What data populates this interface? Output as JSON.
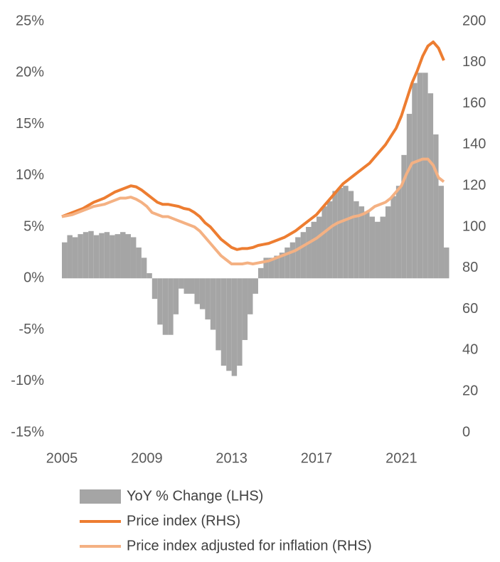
{
  "chart_data": {
    "type": "bar-line",
    "x": [
      2005,
      2005.25,
      2005.5,
      2005.75,
      2006,
      2006.25,
      2006.5,
      2006.75,
      2007,
      2007.25,
      2007.5,
      2007.75,
      2008,
      2008.25,
      2008.5,
      2008.75,
      2009,
      2009.25,
      2009.5,
      2009.75,
      2010,
      2010.25,
      2010.5,
      2010.75,
      2011,
      2011.25,
      2011.5,
      2011.75,
      2012,
      2012.25,
      2012.5,
      2012.75,
      2013,
      2013.25,
      2013.5,
      2013.75,
      2014,
      2014.25,
      2014.5,
      2014.75,
      2015,
      2015.25,
      2015.5,
      2015.75,
      2016,
      2016.25,
      2016.5,
      2016.75,
      2017,
      2017.25,
      2017.5,
      2017.75,
      2018,
      2018.25,
      2018.5,
      2018.75,
      2019,
      2019.25,
      2019.5,
      2019.75,
      2020,
      2020.25,
      2020.5,
      2020.75,
      2021,
      2021.25,
      2021.5,
      2021.75,
      2022,
      2022.25,
      2022.5,
      2022.75,
      2023
    ],
    "xlim": [
      2005,
      2023.1
    ],
    "xticks": [
      2005,
      2009,
      2013,
      2017,
      2021
    ],
    "ylim": [
      -15,
      25
    ],
    "yticks": [
      {
        "value": -15,
        "label": "-15%"
      },
      {
        "value": -10,
        "label": "-10%"
      },
      {
        "value": -5,
        "label": "-5%"
      },
      {
        "value": 0,
        "label": "0%"
      },
      {
        "value": 5,
        "label": "5%"
      },
      {
        "value": 10,
        "label": "10%"
      },
      {
        "value": 15,
        "label": "15%"
      },
      {
        "value": 20,
        "label": "20%"
      },
      {
        "value": 25,
        "label": "25%"
      }
    ],
    "y2lim": [
      0,
      200
    ],
    "y2ticks": [
      0,
      20,
      40,
      60,
      80,
      100,
      120,
      140,
      160,
      180,
      200
    ],
    "series": [
      {
        "name": "YoY % Change (LHS)",
        "kind": "bar",
        "color": "#a5a5a5",
        "values": [
          3.5,
          4.2,
          4.0,
          4.3,
          4.5,
          4.6,
          4.2,
          4.4,
          4.5,
          4.2,
          4.3,
          4.5,
          4.3,
          4.0,
          3.0,
          2.0,
          0.5,
          -2.0,
          -4.5,
          -5.5,
          -5.5,
          -3.5,
          -1.0,
          -1.5,
          -1.5,
          -2.5,
          -3.0,
          -4.0,
          -5.0,
          -7.0,
          -8.5,
          -9.0,
          -9.5,
          -8.5,
          -6.0,
          -3.5,
          -1.5,
          1.0,
          2.0,
          2.0,
          2.2,
          2.5,
          3.0,
          3.5,
          4.0,
          4.5,
          5.0,
          5.5,
          6.0,
          7.0,
          7.5,
          8.5,
          8.8,
          9.0,
          8.5,
          7.5,
          7.0,
          6.5,
          6.0,
          5.5,
          6.0,
          7.0,
          8.0,
          9.0,
          12.0,
          16.0,
          19.0,
          20.0,
          20.0,
          18.0,
          14.0,
          9.0,
          3.0
        ]
      },
      {
        "name": "Price index (RHS)",
        "kind": "line",
        "axis": "y2",
        "color": "#ed7d31",
        "values": [
          105,
          106,
          107,
          108,
          109,
          110.5,
          112,
          113,
          114,
          115.5,
          117,
          118,
          119,
          120,
          119.5,
          118,
          116,
          114,
          112,
          111,
          111,
          110.5,
          110,
          109,
          108.5,
          107,
          105,
          102,
          100,
          97,
          94,
          92,
          90,
          89,
          89.5,
          89.5,
          90,
          91,
          91.5,
          92,
          93,
          94,
          95,
          96.5,
          98,
          100,
          102,
          104,
          106,
          109,
          112,
          115,
          118,
          121,
          123,
          125,
          127,
          129,
          131,
          134,
          137,
          140,
          144,
          148,
          154,
          162,
          170,
          176,
          183,
          188,
          190,
          187,
          181
        ]
      },
      {
        "name": "Price index adjusted for inflation (RHS)",
        "kind": "line",
        "axis": "y2",
        "color": "#f4b183",
        "values": [
          105,
          105.5,
          106,
          107,
          108,
          109,
          110,
          110.5,
          111,
          112,
          113,
          114,
          114,
          114.5,
          113.5,
          112,
          110,
          107,
          106,
          105,
          105,
          104,
          103,
          102,
          101,
          100,
          98,
          95,
          92,
          89,
          86,
          84,
          82,
          82,
          82,
          82.5,
          82,
          82.5,
          83,
          83.5,
          84.5,
          85.5,
          86.5,
          87.5,
          88.5,
          90,
          91.5,
          93,
          94.5,
          96.5,
          98.5,
          100.5,
          102,
          103,
          104,
          105,
          105.5,
          106.5,
          108,
          110,
          111,
          112,
          114,
          117,
          120,
          126,
          131,
          132,
          133,
          133,
          130,
          124,
          122
        ]
      }
    ]
  }
}
